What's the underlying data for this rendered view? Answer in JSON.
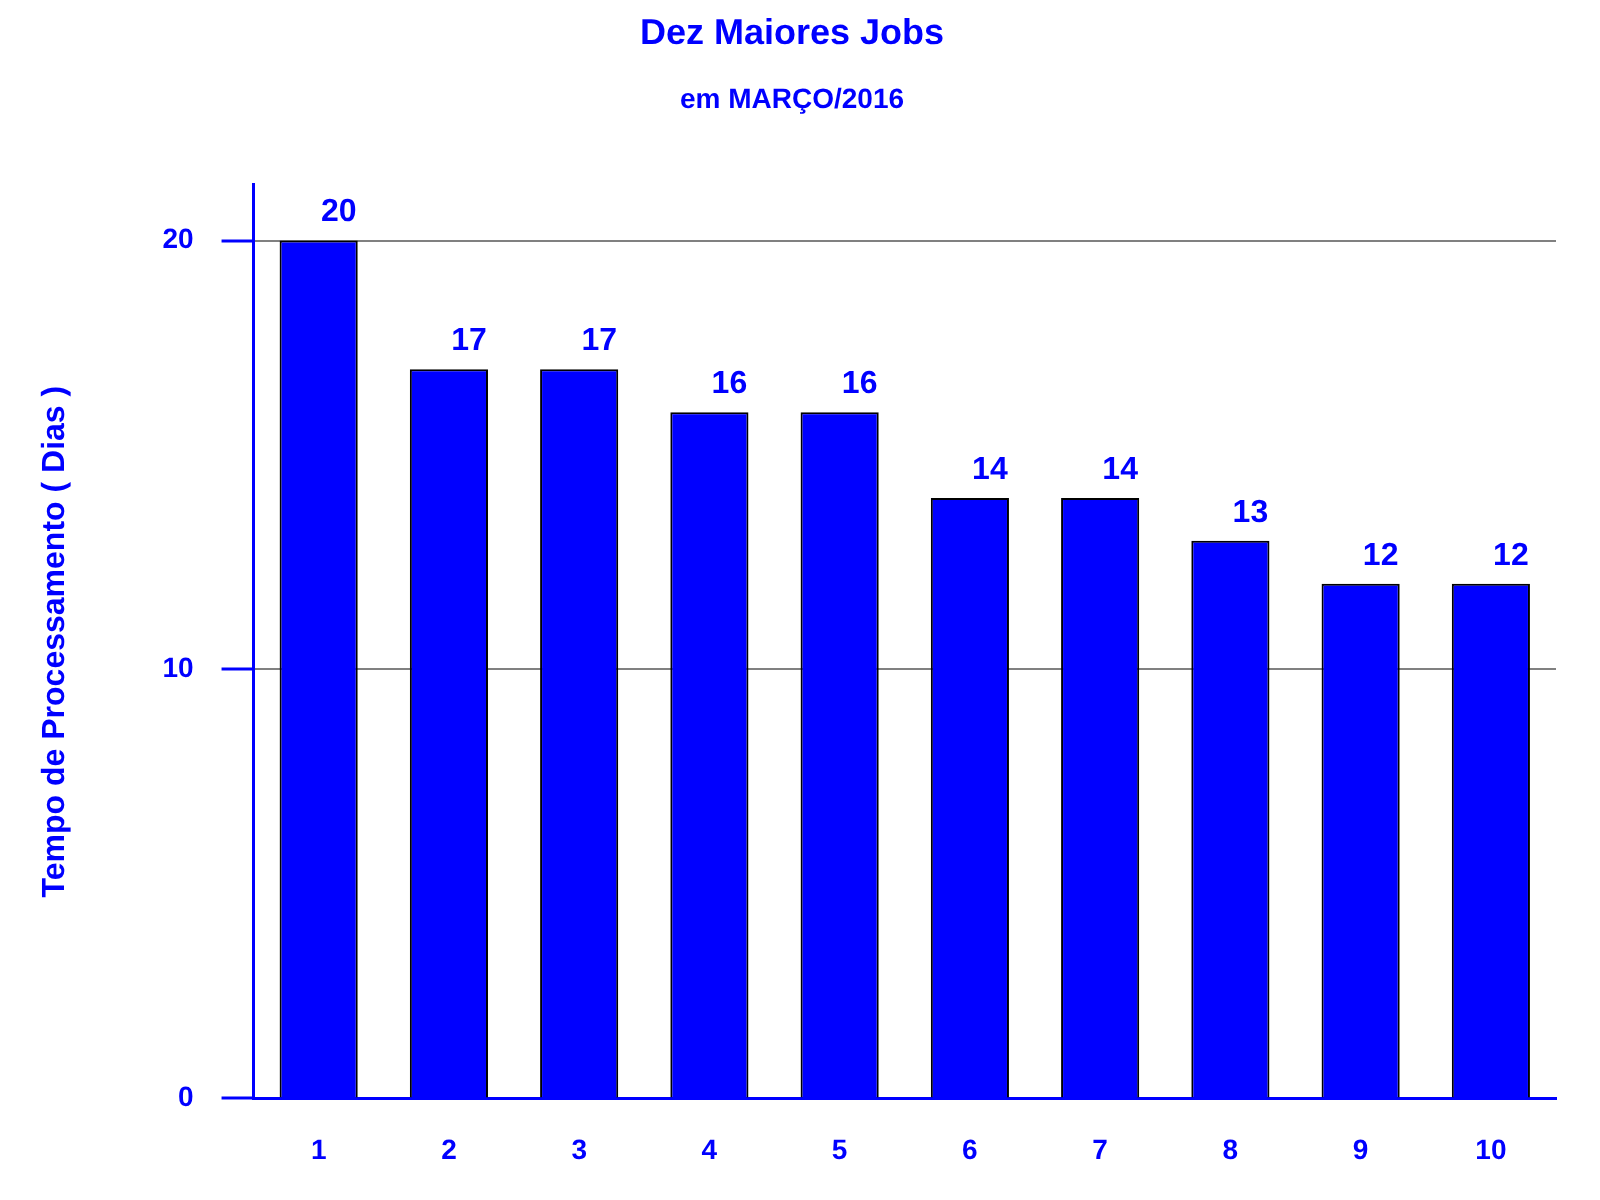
{
  "chart_data": {
    "type": "bar",
    "title": "Dez Maiores Jobs",
    "subtitle": "em MARÇO/2016",
    "ylabel": "Tempo de Processamento ( Dias )",
    "categories": [
      "1",
      "2",
      "3",
      "4",
      "5",
      "6",
      "7",
      "8",
      "9",
      "10"
    ],
    "values": [
      20,
      17,
      17,
      16,
      16,
      14,
      14,
      13,
      12,
      12
    ],
    "color": "#0000ff",
    "ylim": [
      0,
      21.3
    ],
    "yticks": [
      0,
      10,
      20
    ],
    "grid": "y",
    "data_labels": true
  }
}
